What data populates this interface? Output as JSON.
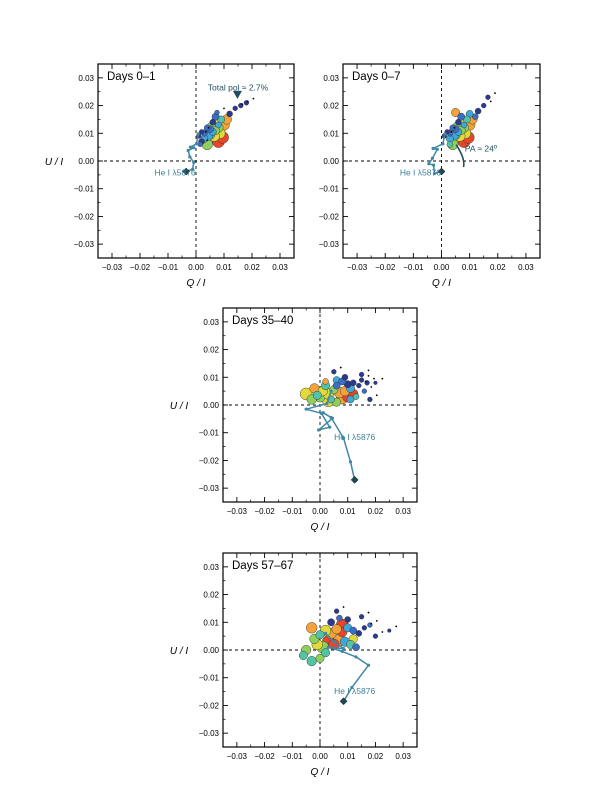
{
  "colors": {
    "axis": "#000000",
    "he_line": "#3f87a6",
    "he_text": "#3b7f99",
    "annotation": "#1f4e5e",
    "palette": [
      "#2b3a8f",
      "#3b6fc4",
      "#3fa8d8",
      "#52c3a6",
      "#8fd05a",
      "#e2d93a",
      "#f3a33a",
      "#e8452a"
    ]
  },
  "chart_data": [
    {
      "type": "scatter",
      "id": "days-0-1",
      "title": "Days 0–1",
      "xlabel": "Q / I",
      "ylabel": "U / I",
      "xlim": [
        -0.035,
        0.035
      ],
      "ylim": [
        -0.035,
        0.035
      ],
      "ticks": [
        -0.03,
        -0.02,
        -0.01,
        0.0,
        0.01,
        0.02,
        0.03
      ],
      "tick_labels": [
        "−0.03",
        "−0.02",
        "−0.01",
        "0.00",
        "0.01",
        "0.02",
        "0.03"
      ],
      "grid": false,
      "reference_lines": {
        "x": 0,
        "y": 0
      },
      "annotations": [
        {
          "text": "Total pol ≈ 2.7%",
          "x": 0.015,
          "y": 0.0265,
          "marker": "triangle-down",
          "mx": 0.0148,
          "my": 0.0235
        },
        {
          "text": "He I λ5876",
          "x": -0.0075,
          "y": -0.0042
        }
      ],
      "he_track": [
        [
          -0.0035,
          -0.0038
        ],
        [
          -0.0012,
          -0.003
        ],
        [
          -0.0008,
          -0.0005
        ],
        [
          -0.0022,
          0.0015
        ],
        [
          -0.0028,
          0.0038
        ],
        [
          -0.0008,
          0.0048
        ],
        [
          -0.002,
          0.005
        ],
        [
          0.0002,
          0.0062
        ],
        [
          0.0008,
          0.0098
        ]
      ],
      "he_end": [
        -0.0035,
        -0.0038
      ],
      "points": [
        [
          0.001,
          0.009,
          0.004,
          0
        ],
        [
          0.002,
          0.0105,
          0.004,
          0
        ],
        [
          0.003,
          0.01,
          0.005,
          1
        ],
        [
          0.004,
          0.012,
          0.005,
          1
        ],
        [
          0.005,
          0.0115,
          0.006,
          1
        ],
        [
          0.006,
          0.014,
          0.005,
          0
        ],
        [
          0.007,
          0.016,
          0.006,
          1
        ],
        [
          0.003,
          0.008,
          0.006,
          2
        ],
        [
          0.0045,
          0.009,
          0.007,
          2
        ],
        [
          0.006,
          0.0105,
          0.006,
          2
        ],
        [
          0.008,
          0.013,
          0.005,
          2
        ],
        [
          0.009,
          0.015,
          0.006,
          3
        ],
        [
          0.0035,
          0.01,
          0.007,
          3
        ],
        [
          0.005,
          0.0095,
          0.008,
          3
        ],
        [
          0.007,
          0.011,
          0.007,
          4
        ],
        [
          0.0055,
          0.0125,
          0.007,
          4
        ],
        [
          0.008,
          0.012,
          0.008,
          4
        ],
        [
          0.004,
          0.006,
          0.009,
          4
        ],
        [
          0.0065,
          0.009,
          0.009,
          5
        ],
        [
          0.0085,
          0.01,
          0.009,
          5
        ],
        [
          0.01,
          0.013,
          0.009,
          6
        ],
        [
          0.011,
          0.015,
          0.008,
          6
        ],
        [
          0.007,
          0.014,
          0.008,
          5
        ],
        [
          0.0095,
          0.0085,
          0.01,
          7
        ],
        [
          0.008,
          0.007,
          0.01,
          7
        ],
        [
          0.002,
          0.007,
          0.005,
          0
        ],
        [
          0.0015,
          0.006,
          0.004,
          1
        ],
        [
          0.012,
          0.017,
          0.005,
          0
        ],
        [
          0.014,
          0.019,
          0.004,
          0
        ],
        [
          0.016,
          0.02,
          0.004,
          0
        ],
        [
          0.018,
          0.021,
          0.004,
          0
        ],
        [
          0.0075,
          0.0175,
          0.004,
          1
        ]
      ]
    },
    {
      "type": "scatter",
      "id": "days-0-7",
      "title": "Days 0–7",
      "xlabel": "Q / I",
      "ylabel": "",
      "xlim": [
        -0.035,
        0.035
      ],
      "ylim": [
        -0.035,
        0.035
      ],
      "ticks": [
        -0.03,
        -0.02,
        -0.01,
        0.0,
        0.01,
        0.02,
        0.03
      ],
      "tick_labels": [
        "−0.03",
        "−0.02",
        "−0.01",
        "0.00",
        "0.01",
        "0.02",
        "0.03"
      ],
      "grid": false,
      "reference_lines": {
        "x": 0,
        "y": 0
      },
      "annotations": [
        {
          "text": "PA ≈ 24º",
          "x": 0.014,
          "y": 0.0045,
          "arc": true
        },
        {
          "text": "He I λ5876",
          "x": -0.0075,
          "y": -0.0042
        }
      ],
      "he_track": [
        [
          0.0,
          -0.0038
        ],
        [
          -0.0025,
          -0.0045
        ],
        [
          -0.0028,
          -0.0015
        ],
        [
          -0.0045,
          -0.001
        ],
        [
          -0.0032,
          0.001
        ],
        [
          -0.0015,
          0.0042
        ],
        [
          -0.003,
          0.0045
        ],
        [
          0.0005,
          0.0062
        ],
        [
          0.0012,
          0.0098
        ]
      ],
      "he_end": [
        0.0,
        -0.0038
      ],
      "points": [
        [
          0.001,
          0.009,
          0.004,
          0
        ],
        [
          0.002,
          0.0105,
          0.004,
          0
        ],
        [
          0.003,
          0.01,
          0.005,
          1
        ],
        [
          0.004,
          0.012,
          0.005,
          1
        ],
        [
          0.005,
          0.0115,
          0.006,
          1
        ],
        [
          0.006,
          0.014,
          0.005,
          0
        ],
        [
          0.007,
          0.016,
          0.006,
          1
        ],
        [
          0.003,
          0.008,
          0.006,
          2
        ],
        [
          0.0045,
          0.009,
          0.007,
          2
        ],
        [
          0.006,
          0.0105,
          0.006,
          2
        ],
        [
          0.008,
          0.013,
          0.005,
          2
        ],
        [
          0.009,
          0.015,
          0.006,
          3
        ],
        [
          0.0035,
          0.01,
          0.007,
          3
        ],
        [
          0.005,
          0.0095,
          0.008,
          3
        ],
        [
          0.007,
          0.011,
          0.007,
          4
        ],
        [
          0.0055,
          0.0125,
          0.007,
          4
        ],
        [
          0.008,
          0.012,
          0.008,
          4
        ],
        [
          0.004,
          0.006,
          0.009,
          4
        ],
        [
          0.0065,
          0.009,
          0.009,
          5
        ],
        [
          0.0085,
          0.01,
          0.009,
          5
        ],
        [
          0.01,
          0.013,
          0.009,
          6
        ],
        [
          0.011,
          0.015,
          0.008,
          6
        ],
        [
          0.007,
          0.014,
          0.008,
          5
        ],
        [
          0.0095,
          0.0085,
          0.01,
          7
        ],
        [
          0.008,
          0.007,
          0.01,
          7
        ],
        [
          0.005,
          0.0175,
          0.007,
          6
        ],
        [
          0.01,
          0.017,
          0.006,
          2
        ],
        [
          0.013,
          0.018,
          0.005,
          0
        ],
        [
          0.015,
          0.02,
          0.004,
          0
        ],
        [
          0.0165,
          0.023,
          0.004,
          0
        ],
        [
          0.012,
          0.016,
          0.005,
          1
        ],
        [
          0.003,
          0.006,
          0.005,
          3
        ]
      ]
    },
    {
      "type": "scatter",
      "id": "days-35-40",
      "title": "Days 35–40",
      "xlabel": "Q / I",
      "ylabel": "U / I",
      "xlim": [
        -0.035,
        0.035
      ],
      "ylim": [
        -0.035,
        0.035
      ],
      "ticks": [
        -0.03,
        -0.02,
        -0.01,
        0.0,
        0.01,
        0.02,
        0.03
      ],
      "tick_labels": [
        "−0.03",
        "−0.02",
        "−0.01",
        "0.00",
        "0.01",
        "0.02",
        "0.03"
      ],
      "grid": false,
      "reference_lines": {
        "x": 0,
        "y": 0
      },
      "annotations": [
        {
          "text": "He I λ5876",
          "x": 0.0125,
          "y": -0.0115
        }
      ],
      "he_track": [
        [
          0.0125,
          -0.027
        ],
        [
          0.011,
          -0.0205
        ],
        [
          0.0085,
          -0.012
        ],
        [
          0.004,
          -0.0045
        ],
        [
          0.0012,
          -0.0028
        ],
        [
          0.0045,
          -0.0048
        ],
        [
          -0.0005,
          -0.009
        ],
        [
          0.0035,
          -0.008
        ],
        [
          0.0005,
          -0.003
        ],
        [
          -0.005,
          -0.0015
        ],
        [
          0.0025,
          0.0005
        ],
        [
          0.004,
          0.005
        ]
      ],
      "he_end": [
        0.0125,
        -0.027
      ],
      "points": [
        [
          -0.003,
          0.002,
          0.008,
          4
        ],
        [
          -0.001,
          0.0035,
          0.007,
          3
        ],
        [
          0.001,
          0.005,
          0.008,
          5
        ],
        [
          0.003,
          0.004,
          0.009,
          5
        ],
        [
          0.005,
          0.0055,
          0.007,
          4
        ],
        [
          0.007,
          0.0045,
          0.009,
          6
        ],
        [
          0.009,
          0.005,
          0.008,
          6
        ],
        [
          0.011,
          0.006,
          0.007,
          2
        ],
        [
          0.006,
          0.007,
          0.006,
          1
        ],
        [
          0.008,
          0.0085,
          0.006,
          1
        ],
        [
          0.01,
          0.0075,
          0.006,
          0
        ],
        [
          0.012,
          0.008,
          0.005,
          0
        ],
        [
          0.014,
          0.007,
          0.004,
          0
        ],
        [
          0.015,
          0.009,
          0.004,
          0
        ],
        [
          0.017,
          0.008,
          0.004,
          0
        ],
        [
          0.018,
          0.002,
          0.004,
          0
        ],
        [
          0.012,
          0.004,
          0.008,
          7
        ],
        [
          0.01,
          0.003,
          0.009,
          7
        ],
        [
          0.008,
          0.0025,
          0.01,
          6
        ],
        [
          0.003,
          0.0015,
          0.01,
          5
        ],
        [
          0.0,
          0.003,
          0.009,
          4
        ],
        [
          -0.005,
          0.004,
          0.01,
          5
        ],
        [
          -0.002,
          0.006,
          0.008,
          6
        ],
        [
          0.002,
          0.007,
          0.007,
          3
        ],
        [
          0.004,
          0.002,
          0.006,
          3
        ],
        [
          0.006,
          0.001,
          0.007,
          4
        ],
        [
          0.011,
          0.002,
          0.006,
          2
        ],
        [
          0.013,
          0.003,
          0.005,
          3
        ],
        [
          0.009,
          0.01,
          0.005,
          0
        ],
        [
          0.006,
          0.009,
          0.006,
          2
        ],
        [
          0.002,
          0.0085,
          0.005,
          6
        ],
        [
          0.005,
          0.012,
          0.004,
          0
        ],
        [
          0.015,
          0.011,
          0.004,
          0
        ],
        [
          0.02,
          0.008,
          0.003,
          0
        ],
        [
          0.016,
          0.005,
          0.004,
          1
        ]
      ]
    },
    {
      "type": "scatter",
      "id": "days-57-67",
      "title": "Days 57–67",
      "xlabel": "Q / I",
      "ylabel": "U / I",
      "xlim": [
        -0.035,
        0.035
      ],
      "ylim": [
        -0.035,
        0.035
      ],
      "ticks": [
        -0.03,
        -0.02,
        -0.01,
        0.0,
        0.01,
        0.02,
        0.03
      ],
      "tick_labels": [
        "−0.03",
        "−0.02",
        "−0.01",
        "0.00",
        "0.01",
        "0.02",
        "0.03"
      ],
      "grid": false,
      "reference_lines": {
        "x": 0,
        "y": 0
      },
      "annotations": [
        {
          "text": "He I λ5876",
          "x": 0.0125,
          "y": -0.0148
        }
      ],
      "he_track": [
        [
          0.0085,
          -0.0185
        ],
        [
          0.0115,
          -0.0135
        ],
        [
          0.0175,
          -0.0055
        ],
        [
          0.013,
          -0.0025
        ],
        [
          0.008,
          -0.0005
        ],
        [
          0.003,
          0.001
        ],
        [
          0.0085,
          0.0005
        ],
        [
          0.005,
          0.003
        ],
        [
          0.002,
          0.006
        ]
      ],
      "he_end": [
        0.0085,
        -0.0185
      ],
      "points": [
        [
          -0.002,
          0.004,
          0.008,
          4
        ],
        [
          0.0,
          0.0055,
          0.007,
          3
        ],
        [
          0.002,
          0.007,
          0.009,
          5
        ],
        [
          0.004,
          0.006,
          0.009,
          6
        ],
        [
          0.006,
          0.0075,
          0.008,
          6
        ],
        [
          0.008,
          0.0065,
          0.008,
          7
        ],
        [
          0.01,
          0.008,
          0.007,
          2
        ],
        [
          0.012,
          0.007,
          0.006,
          1
        ],
        [
          0.014,
          0.006,
          0.005,
          0
        ],
        [
          0.016,
          0.008,
          0.004,
          0
        ],
        [
          0.02,
          0.005,
          0.004,
          0
        ],
        [
          0.025,
          0.007,
          0.003,
          0
        ],
        [
          -0.001,
          0.002,
          0.009,
          5
        ],
        [
          0.001,
          0.001,
          0.01,
          4
        ],
        [
          0.003,
          0.003,
          0.01,
          7
        ],
        [
          0.005,
          0.002,
          0.009,
          7
        ],
        [
          0.007,
          0.0035,
          0.01,
          6
        ],
        [
          0.009,
          0.003,
          0.008,
          2
        ],
        [
          0.011,
          0.002,
          0.007,
          3
        ],
        [
          0.013,
          0.001,
          0.006,
          1
        ],
        [
          0.004,
          0.01,
          0.006,
          0
        ],
        [
          0.007,
          0.0115,
          0.005,
          1
        ],
        [
          0.01,
          0.011,
          0.005,
          0
        ],
        [
          0.015,
          0.012,
          0.004,
          0
        ],
        [
          -0.006,
          -0.002,
          0.007,
          3
        ],
        [
          -0.003,
          -0.004,
          0.008,
          3
        ],
        [
          0.0,
          -0.003,
          0.007,
          4
        ],
        [
          -0.005,
          0.0,
          0.008,
          4
        ],
        [
          0.002,
          -0.001,
          0.007,
          3
        ],
        [
          0.018,
          0.009,
          0.004,
          1
        ],
        [
          0.006,
          0.014,
          0.004,
          0
        ],
        [
          -0.003,
          0.008,
          0.009,
          6
        ],
        [
          0.008,
          0.009,
          0.01,
          7
        ],
        [
          0.012,
          0.004,
          0.007,
          5
        ]
      ]
    }
  ]
}
